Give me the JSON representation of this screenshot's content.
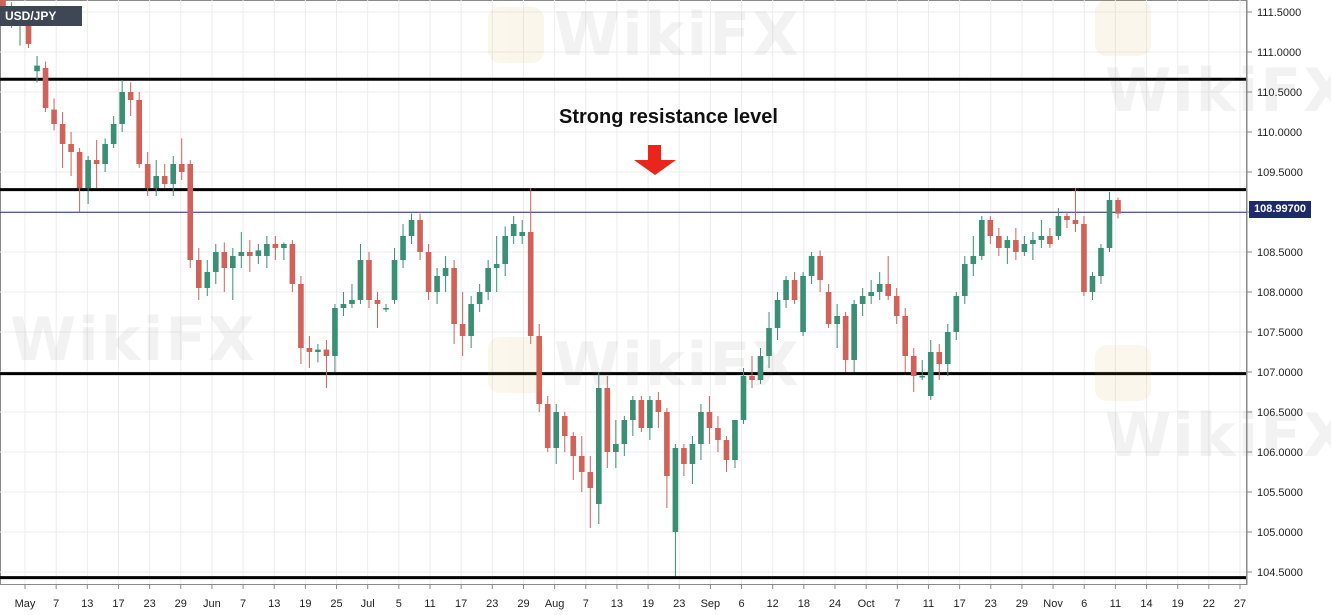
{
  "header": {
    "symbol": "USD/JPY"
  },
  "annotation": {
    "text": "Strong resistance level"
  },
  "current_price": {
    "label": "108.99700",
    "value": 108.997,
    "color": "#1f2a6d"
  },
  "watermark": {
    "text": "WikiFX"
  },
  "colors": {
    "up": "#3a8f74",
    "down": "#d0625a",
    "level": "#000000",
    "arrow": "#e8261b",
    "grid": "#ececec"
  },
  "chart_data": {
    "type": "candlestick",
    "y_axis": {
      "range": [
        104.35,
        111.65
      ],
      "ticks": [
        "111.5000",
        "111.0000",
        "110.5000",
        "110.0000",
        "109.5000",
        "109.0000",
        "108.5000",
        "108.0000",
        "107.5000",
        "107.0000",
        "106.5000",
        "106.0000",
        "105.5000",
        "105.0000",
        "104.5000"
      ]
    },
    "x_axis": {
      "ticks": [
        "May",
        "7",
        "13",
        "17",
        "23",
        "29",
        "Jun",
        "7",
        "13",
        "19",
        "25",
        "Jul",
        "5",
        "11",
        "17",
        "23",
        "29",
        "Aug",
        "7",
        "13",
        "19",
        "23",
        "Sep",
        "6",
        "12",
        "18",
        "24",
        "Oct",
        "7",
        "11",
        "17",
        "23",
        "29",
        "Nov",
        "6",
        "11",
        "14",
        "19",
        "22",
        "27"
      ]
    },
    "levels": [
      110.66,
      109.28,
      106.98,
      104.43
    ],
    "candles": [
      {
        "o": 111.65,
        "h": 111.72,
        "l": 111.42,
        "c": 111.55
      },
      {
        "o": 111.55,
        "h": 111.62,
        "l": 111.3,
        "c": 111.4
      },
      {
        "o": 111.4,
        "h": 111.55,
        "l": 111.08,
        "c": 111.45
      },
      {
        "o": 111.45,
        "h": 111.55,
        "l": 111.05,
        "c": 111.1
      },
      {
        "o": 110.76,
        "h": 110.95,
        "l": 110.62,
        "c": 110.83
      },
      {
        "o": 110.8,
        "h": 110.88,
        "l": 110.25,
        "c": 110.3
      },
      {
        "o": 110.28,
        "h": 110.42,
        "l": 110.02,
        "c": 110.1
      },
      {
        "o": 110.1,
        "h": 110.25,
        "l": 109.55,
        "c": 109.85
      },
      {
        "o": 109.85,
        "h": 110.0,
        "l": 109.45,
        "c": 109.75
      },
      {
        "o": 109.75,
        "h": 109.8,
        "l": 109.0,
        "c": 109.3
      },
      {
        "o": 109.3,
        "h": 109.7,
        "l": 109.1,
        "c": 109.65
      },
      {
        "o": 109.65,
        "h": 109.9,
        "l": 109.3,
        "c": 109.6
      },
      {
        "o": 109.6,
        "h": 109.92,
        "l": 109.5,
        "c": 109.85
      },
      {
        "o": 109.85,
        "h": 110.2,
        "l": 109.8,
        "c": 110.1
      },
      {
        "o": 110.1,
        "h": 110.65,
        "l": 110.0,
        "c": 110.5
      },
      {
        "o": 110.5,
        "h": 110.62,
        "l": 110.2,
        "c": 110.4
      },
      {
        "o": 110.4,
        "h": 110.5,
        "l": 109.55,
        "c": 109.6
      },
      {
        "o": 109.6,
        "h": 109.75,
        "l": 109.2,
        "c": 109.3
      },
      {
        "o": 109.3,
        "h": 109.65,
        "l": 109.2,
        "c": 109.45
      },
      {
        "o": 109.45,
        "h": 109.6,
        "l": 109.3,
        "c": 109.35
      },
      {
        "o": 109.35,
        "h": 109.7,
        "l": 109.2,
        "c": 109.6
      },
      {
        "o": 109.6,
        "h": 109.92,
        "l": 109.4,
        "c": 109.5
      },
      {
        "o": 109.6,
        "h": 109.65,
        "l": 108.3,
        "c": 108.4
      },
      {
        "o": 108.4,
        "h": 108.55,
        "l": 107.9,
        "c": 108.05
      },
      {
        "o": 108.05,
        "h": 108.4,
        "l": 107.95,
        "c": 108.25
      },
      {
        "o": 108.25,
        "h": 108.6,
        "l": 108.1,
        "c": 108.5
      },
      {
        "o": 108.5,
        "h": 108.62,
        "l": 108.0,
        "c": 108.3
      },
      {
        "o": 108.3,
        "h": 108.55,
        "l": 107.9,
        "c": 108.45
      },
      {
        "o": 108.45,
        "h": 108.75,
        "l": 108.3,
        "c": 108.5
      },
      {
        "o": 108.5,
        "h": 108.65,
        "l": 108.25,
        "c": 108.45
      },
      {
        "o": 108.45,
        "h": 108.6,
        "l": 108.35,
        "c": 108.52
      },
      {
        "o": 108.45,
        "h": 108.7,
        "l": 108.3,
        "c": 108.6
      },
      {
        "o": 108.6,
        "h": 108.7,
        "l": 108.4,
        "c": 108.55
      },
      {
        "o": 108.55,
        "h": 108.62,
        "l": 108.4,
        "c": 108.6
      },
      {
        "o": 108.6,
        "h": 108.65,
        "l": 108.0,
        "c": 108.1
      },
      {
        "o": 108.1,
        "h": 108.2,
        "l": 107.1,
        "c": 107.3
      },
      {
        "o": 107.3,
        "h": 107.45,
        "l": 107.05,
        "c": 107.25
      },
      {
        "o": 107.25,
        "h": 107.35,
        "l": 107.12,
        "c": 107.28
      },
      {
        "o": 107.28,
        "h": 107.4,
        "l": 106.8,
        "c": 107.2
      },
      {
        "o": 107.2,
        "h": 107.85,
        "l": 107.0,
        "c": 107.8
      },
      {
        "o": 107.8,
        "h": 108.0,
        "l": 107.7,
        "c": 107.85
      },
      {
        "o": 107.85,
        "h": 108.1,
        "l": 107.8,
        "c": 107.9
      },
      {
        "o": 107.9,
        "h": 108.6,
        "l": 107.85,
        "c": 108.4
      },
      {
        "o": 108.4,
        "h": 108.5,
        "l": 107.8,
        "c": 107.9
      },
      {
        "o": 107.9,
        "h": 108.0,
        "l": 107.55,
        "c": 107.85
      },
      {
        "o": 107.8,
        "h": 107.85,
        "l": 107.75,
        "c": 107.8
      },
      {
        "o": 107.9,
        "h": 108.55,
        "l": 107.85,
        "c": 108.4
      },
      {
        "o": 108.4,
        "h": 108.85,
        "l": 108.3,
        "c": 108.7
      },
      {
        "o": 108.7,
        "h": 108.98,
        "l": 108.6,
        "c": 108.9
      },
      {
        "o": 108.9,
        "h": 108.98,
        "l": 108.4,
        "c": 108.5
      },
      {
        "o": 108.5,
        "h": 108.6,
        "l": 107.9,
        "c": 108.0
      },
      {
        "o": 108.0,
        "h": 108.3,
        "l": 107.85,
        "c": 108.2
      },
      {
        "o": 108.2,
        "h": 108.45,
        "l": 108.0,
        "c": 108.3
      },
      {
        "o": 108.3,
        "h": 108.4,
        "l": 107.35,
        "c": 107.6
      },
      {
        "o": 107.6,
        "h": 108.0,
        "l": 107.2,
        "c": 107.45
      },
      {
        "o": 107.45,
        "h": 107.95,
        "l": 107.3,
        "c": 107.85
      },
      {
        "o": 107.85,
        "h": 108.1,
        "l": 107.75,
        "c": 108.0
      },
      {
        "o": 108.0,
        "h": 108.4,
        "l": 107.9,
        "c": 108.3
      },
      {
        "o": 108.3,
        "h": 108.7,
        "l": 108.0,
        "c": 108.35
      },
      {
        "o": 108.35,
        "h": 108.82,
        "l": 108.2,
        "c": 108.7
      },
      {
        "o": 108.7,
        "h": 108.95,
        "l": 108.6,
        "c": 108.85
      },
      {
        "o": 108.7,
        "h": 108.9,
        "l": 108.6,
        "c": 108.75
      },
      {
        "o": 108.75,
        "h": 109.3,
        "l": 107.35,
        "c": 107.45
      },
      {
        "o": 107.45,
        "h": 107.6,
        "l": 106.5,
        "c": 106.6
      },
      {
        "o": 106.6,
        "h": 106.7,
        "l": 106.0,
        "c": 106.05
      },
      {
        "o": 106.05,
        "h": 106.6,
        "l": 105.85,
        "c": 106.5
      },
      {
        "o": 106.45,
        "h": 106.5,
        "l": 106.0,
        "c": 106.2
      },
      {
        "o": 106.2,
        "h": 106.25,
        "l": 105.65,
        "c": 105.95
      },
      {
        "o": 105.95,
        "h": 106.2,
        "l": 105.5,
        "c": 105.75
      },
      {
        "o": 105.75,
        "h": 105.95,
        "l": 105.05,
        "c": 105.55
      },
      {
        "o": 105.35,
        "h": 107.0,
        "l": 105.1,
        "c": 106.8
      },
      {
        "o": 106.8,
        "h": 106.95,
        "l": 105.8,
        "c": 106.0
      },
      {
        "o": 106.0,
        "h": 106.4,
        "l": 105.8,
        "c": 106.1
      },
      {
        "o": 106.1,
        "h": 106.45,
        "l": 105.95,
        "c": 106.4
      },
      {
        "o": 106.4,
        "h": 106.7,
        "l": 106.2,
        "c": 106.65
      },
      {
        "o": 106.65,
        "h": 106.7,
        "l": 106.25,
        "c": 106.3
      },
      {
        "o": 106.3,
        "h": 106.7,
        "l": 106.15,
        "c": 106.65
      },
      {
        "o": 106.65,
        "h": 106.75,
        "l": 106.3,
        "c": 106.5
      },
      {
        "o": 106.5,
        "h": 106.55,
        "l": 105.3,
        "c": 105.7
      },
      {
        "o": 105.0,
        "h": 106.1,
        "l": 104.45,
        "c": 106.05
      },
      {
        "o": 106.05,
        "h": 106.1,
        "l": 105.7,
        "c": 105.85
      },
      {
        "o": 105.85,
        "h": 106.2,
        "l": 105.6,
        "c": 106.1
      },
      {
        "o": 106.1,
        "h": 106.6,
        "l": 105.9,
        "c": 106.5
      },
      {
        "o": 106.5,
        "h": 106.7,
        "l": 106.1,
        "c": 106.3
      },
      {
        "o": 106.3,
        "h": 106.45,
        "l": 106.0,
        "c": 106.15
      },
      {
        "o": 106.15,
        "h": 106.2,
        "l": 105.75,
        "c": 105.9
      },
      {
        "o": 105.9,
        "h": 106.4,
        "l": 105.8,
        "c": 106.4
      },
      {
        "o": 106.4,
        "h": 107.05,
        "l": 106.35,
        "c": 106.95
      },
      {
        "o": 106.95,
        "h": 107.2,
        "l": 106.8,
        "c": 106.9
      },
      {
        "o": 106.9,
        "h": 107.3,
        "l": 106.85,
        "c": 107.2
      },
      {
        "o": 107.2,
        "h": 107.75,
        "l": 107.05,
        "c": 107.55
      },
      {
        "o": 107.55,
        "h": 108.0,
        "l": 107.4,
        "c": 107.9
      },
      {
        "o": 107.9,
        "h": 108.2,
        "l": 107.8,
        "c": 108.15
      },
      {
        "o": 108.15,
        "h": 108.25,
        "l": 107.85,
        "c": 107.9
      },
      {
        "o": 107.5,
        "h": 108.25,
        "l": 107.45,
        "c": 108.2
      },
      {
        "o": 108.2,
        "h": 108.5,
        "l": 108.1,
        "c": 108.45
      },
      {
        "o": 108.45,
        "h": 108.52,
        "l": 108.0,
        "c": 108.15
      },
      {
        "o": 108.0,
        "h": 108.1,
        "l": 107.55,
        "c": 107.6
      },
      {
        "o": 107.6,
        "h": 107.85,
        "l": 107.3,
        "c": 107.7
      },
      {
        "o": 107.7,
        "h": 107.75,
        "l": 107.0,
        "c": 107.15
      },
      {
        "o": 107.15,
        "h": 107.9,
        "l": 107.0,
        "c": 107.85
      },
      {
        "o": 107.85,
        "h": 108.05,
        "l": 107.7,
        "c": 107.95
      },
      {
        "o": 107.95,
        "h": 108.15,
        "l": 107.85,
        "c": 108.0
      },
      {
        "o": 108.0,
        "h": 108.25,
        "l": 107.9,
        "c": 108.1
      },
      {
        "o": 108.1,
        "h": 108.45,
        "l": 107.9,
        "c": 107.95
      },
      {
        "o": 107.95,
        "h": 108.05,
        "l": 107.6,
        "c": 107.7
      },
      {
        "o": 107.7,
        "h": 107.8,
        "l": 107.0,
        "c": 107.2
      },
      {
        "o": 107.2,
        "h": 107.3,
        "l": 106.75,
        "c": 106.95
      },
      {
        "o": 106.95,
        "h": 107.15,
        "l": 106.9,
        "c": 106.95
      },
      {
        "o": 106.7,
        "h": 107.4,
        "l": 106.65,
        "c": 107.25
      },
      {
        "o": 107.25,
        "h": 107.35,
        "l": 106.9,
        "c": 107.1
      },
      {
        "o": 107.1,
        "h": 107.6,
        "l": 106.95,
        "c": 107.5
      },
      {
        "o": 107.5,
        "h": 108.0,
        "l": 107.4,
        "c": 107.95
      },
      {
        "o": 107.95,
        "h": 108.45,
        "l": 107.85,
        "c": 108.35
      },
      {
        "o": 108.35,
        "h": 108.7,
        "l": 108.2,
        "c": 108.45
      },
      {
        "o": 108.45,
        "h": 108.95,
        "l": 108.4,
        "c": 108.9
      },
      {
        "o": 108.9,
        "h": 108.95,
        "l": 108.6,
        "c": 108.7
      },
      {
        "o": 108.7,
        "h": 108.8,
        "l": 108.45,
        "c": 108.55
      },
      {
        "o": 108.55,
        "h": 108.7,
        "l": 108.35,
        "c": 108.65
      },
      {
        "o": 108.65,
        "h": 108.8,
        "l": 108.4,
        "c": 108.5
      },
      {
        "o": 108.5,
        "h": 108.7,
        "l": 108.45,
        "c": 108.6
      },
      {
        "o": 108.6,
        "h": 108.75,
        "l": 108.4,
        "c": 108.65
      },
      {
        "o": 108.65,
        "h": 108.9,
        "l": 108.55,
        "c": 108.7
      },
      {
        "o": 108.7,
        "h": 108.8,
        "l": 108.55,
        "c": 108.6
      },
      {
        "o": 108.7,
        "h": 109.05,
        "l": 108.65,
        "c": 108.95
      },
      {
        "o": 108.95,
        "h": 109.0,
        "l": 108.8,
        "c": 108.9
      },
      {
        "o": 108.9,
        "h": 109.3,
        "l": 108.75,
        "c": 108.85
      },
      {
        "o": 108.85,
        "h": 108.95,
        "l": 107.95,
        "c": 108.0
      },
      {
        "o": 108.0,
        "h": 108.25,
        "l": 107.9,
        "c": 108.2
      },
      {
        "o": 108.2,
        "h": 108.6,
        "l": 108.1,
        "c": 108.55
      },
      {
        "o": 108.55,
        "h": 109.25,
        "l": 108.5,
        "c": 109.15
      },
      {
        "o": 109.15,
        "h": 109.18,
        "l": 108.92,
        "c": 108.98
      }
    ]
  }
}
